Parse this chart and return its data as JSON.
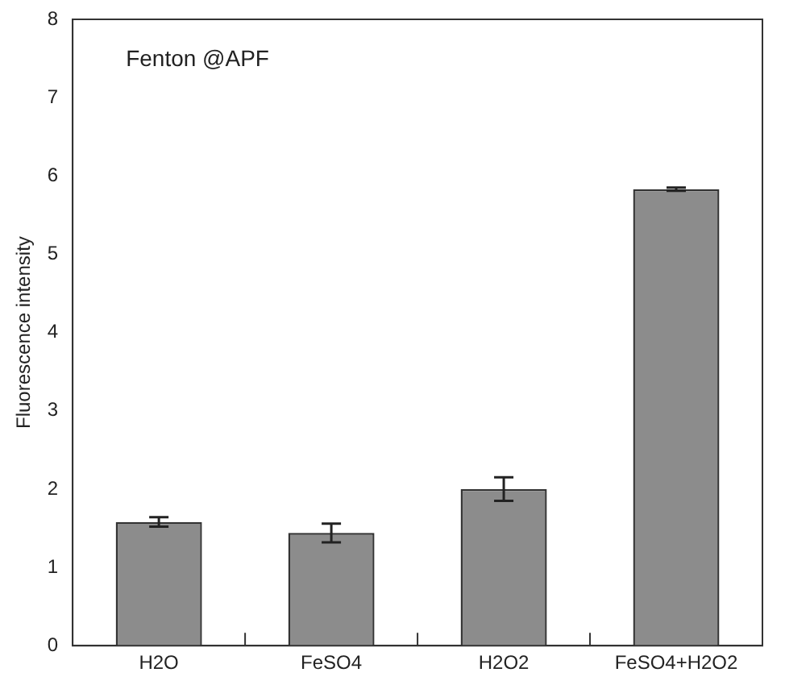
{
  "chart_data": {
    "type": "bar",
    "title": "Fenton @APF",
    "ylabel": "Fluorescence intensity",
    "categories": [
      "H2O",
      "FeSO4",
      "H2O2",
      "FeSO4+H2O2"
    ],
    "values": [
      1.58,
      1.44,
      2.0,
      5.83
    ],
    "errors": [
      0.06,
      0.12,
      0.15,
      0.02
    ],
    "color": "#8c8c8c",
    "ylim": [
      0,
      8
    ],
    "yticks": [
      0,
      1,
      2,
      3,
      4,
      5,
      6,
      7,
      8
    ],
    "grid": false,
    "legend": false
  }
}
